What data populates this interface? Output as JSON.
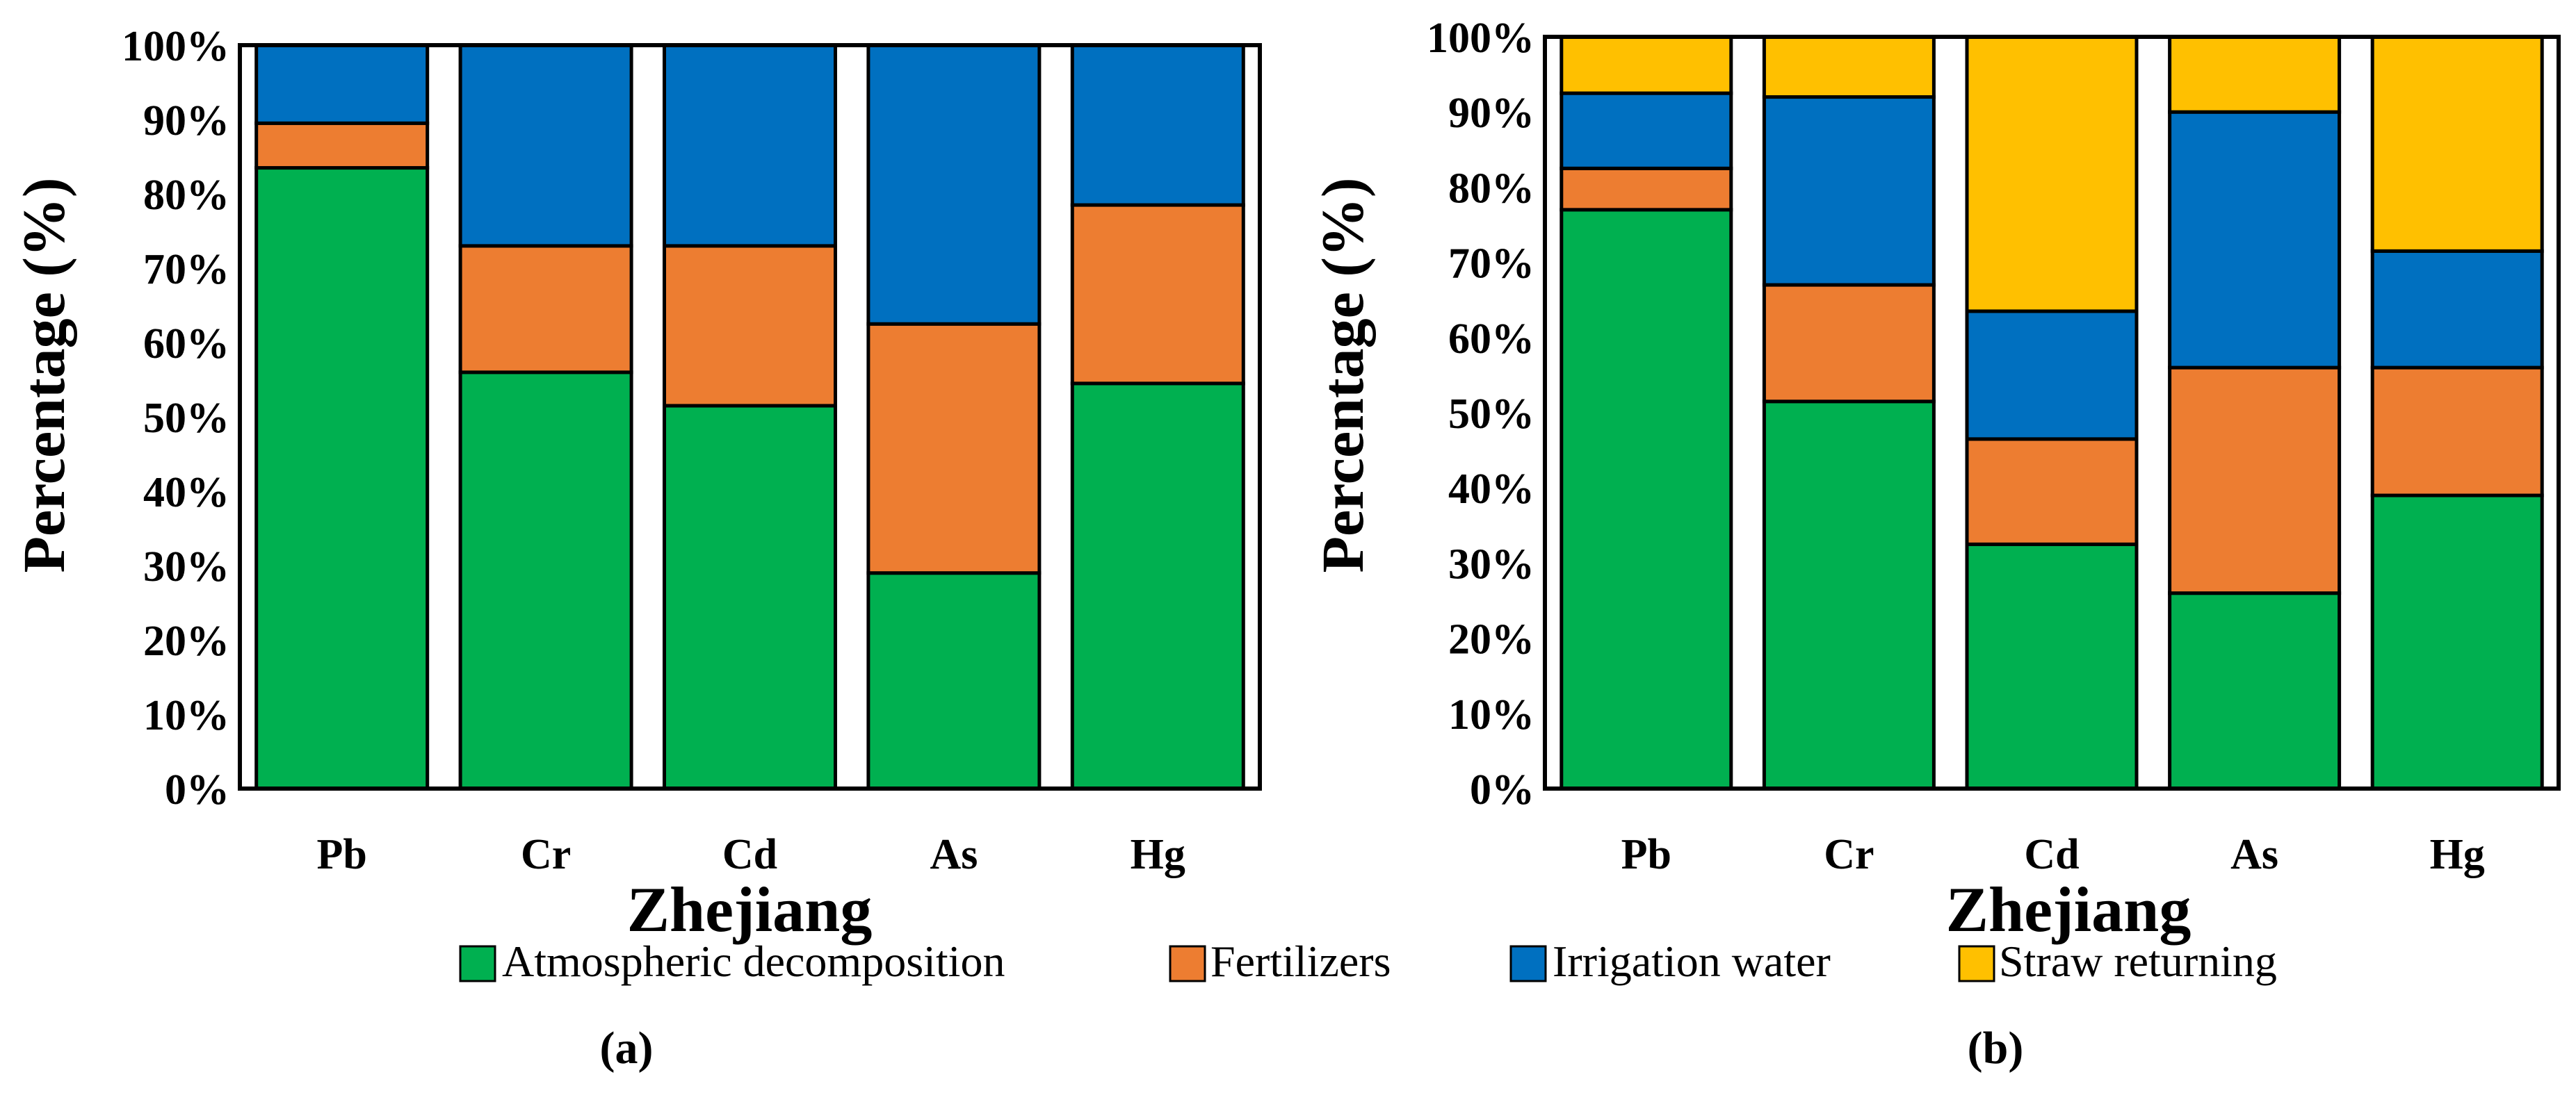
{
  "legend": {
    "items": [
      {
        "label": "Atmospheric decomposition",
        "color": "#00B050"
      },
      {
        "label": "Fertilizers",
        "color": "#ED7D31"
      },
      {
        "label": "Irrigation water",
        "color": "#0070C0"
      },
      {
        "label": "Straw returning",
        "color": "#FFC000"
      }
    ]
  },
  "chart_data": [
    {
      "type": "bar",
      "stacked": true,
      "panel_label": "(a)",
      "xlabel": "Zhejiang",
      "ylabel": "Percentage (%)",
      "ylim": [
        0,
        100
      ],
      "yticks": [
        "0%",
        "10%",
        "20%",
        "30%",
        "40%",
        "50%",
        "60%",
        "70%",
        "80%",
        "90%",
        "100%"
      ],
      "categories": [
        "Pb",
        "Cr",
        "Cd",
        "As",
        "Hg"
      ],
      "series": [
        {
          "name": "Atmospheric decomposition",
          "color": "#00B050",
          "values": [
            83.5,
            56,
            51.5,
            29,
            54.5
          ]
        },
        {
          "name": "Fertilizers",
          "color": "#ED7D31",
          "values": [
            6,
            17,
            21.5,
            33.5,
            24
          ]
        },
        {
          "name": "Irrigation water",
          "color": "#0070C0",
          "values": [
            10.5,
            27,
            27,
            37.5,
            21.5
          ]
        }
      ]
    },
    {
      "type": "bar",
      "stacked": true,
      "panel_label": "(b)",
      "xlabel": "Zhejiang",
      "ylabel": "Percentage (%)",
      "ylim": [
        0,
        100
      ],
      "yticks": [
        "0%",
        "10%",
        "20%",
        "30%",
        "40%",
        "50%",
        "60%",
        "70%",
        "80%",
        "90%",
        "100%"
      ],
      "categories": [
        "Pb",
        "Cr",
        "Cd",
        "As",
        "Hg"
      ],
      "series": [
        {
          "name": "Atmospheric decomposition",
          "color": "#00B050",
          "values": [
            77,
            51.5,
            32.5,
            26,
            39
          ]
        },
        {
          "name": "Fertilizers",
          "color": "#ED7D31",
          "values": [
            5.5,
            15.5,
            14,
            30,
            17
          ]
        },
        {
          "name": "Irrigation water",
          "color": "#0070C0",
          "values": [
            10,
            25,
            17,
            34,
            15.5
          ]
        },
        {
          "name": "Straw returning",
          "color": "#FFC000",
          "values": [
            7.5,
            8,
            36.5,
            10,
            28.5
          ]
        }
      ]
    }
  ]
}
